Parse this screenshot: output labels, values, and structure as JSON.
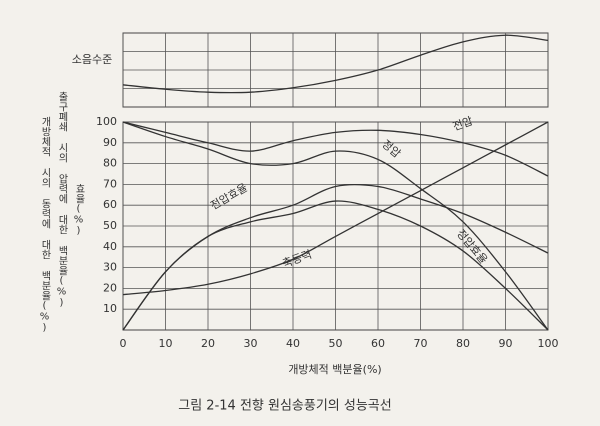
{
  "chart_data": [
    {
      "type": "line",
      "label": "소음수준",
      "x": [
        0,
        10,
        20,
        30,
        40,
        50,
        60,
        70,
        80,
        90,
        100
      ],
      "series": [
        {
          "name": "소음수준",
          "color": "#333333",
          "values": [
            30,
            24,
            20,
            20,
            26,
            36,
            50,
            70,
            88,
            97,
            90
          ]
        }
      ],
      "xlim": [
        0,
        100
      ],
      "ylim": [
        0,
        100
      ],
      "grid": true
    },
    {
      "type": "line",
      "x": [
        0,
        10,
        20,
        30,
        40,
        50,
        60,
        70,
        80,
        90,
        100
      ],
      "series": [
        {
          "name": "전압",
          "color": "#333333",
          "values": [
            100,
            95,
            90,
            86,
            91,
            95,
            96,
            94,
            90,
            84,
            74
          ]
        },
        {
          "name": "정압",
          "color": "#333333",
          "values": [
            100,
            93,
            87,
            80,
            80,
            86,
            82,
            68,
            52,
            28,
            0
          ]
        },
        {
          "name": "전압효율",
          "color": "#333333",
          "values": [
            0,
            28,
            45,
            54,
            60,
            69,
            69,
            63,
            56,
            47,
            37
          ]
        },
        {
          "name": "정압효율",
          "color": "#333333",
          "values": [
            0,
            28,
            45,
            52,
            56,
            62,
            58,
            50,
            38,
            20,
            0
          ]
        },
        {
          "name": "축동력",
          "color": "#333333",
          "values": [
            17,
            19,
            22,
            27,
            34,
            45,
            56,
            67,
            78,
            89,
            100
          ]
        }
      ],
      "xlim": [
        0,
        100
      ],
      "ylim": [
        0,
        100
      ],
      "xticks": [
        0,
        10,
        20,
        30,
        40,
        50,
        60,
        70,
        80,
        90,
        100
      ],
      "yticks": [
        10,
        20,
        30,
        40,
        50,
        60,
        70,
        80,
        90,
        100
      ],
      "xlabel": "개방체적 백분율(%)",
      "ylabel": [
        "개방체적 시의 동력에 대한 백분율(%)",
        "출구폐쇄 시의 압력에 대한 백분율(%)",
        "효율(%)"
      ],
      "grid": true,
      "caption": "그림 2-14 전향 원심송풍기의 성능곡선"
    }
  ]
}
